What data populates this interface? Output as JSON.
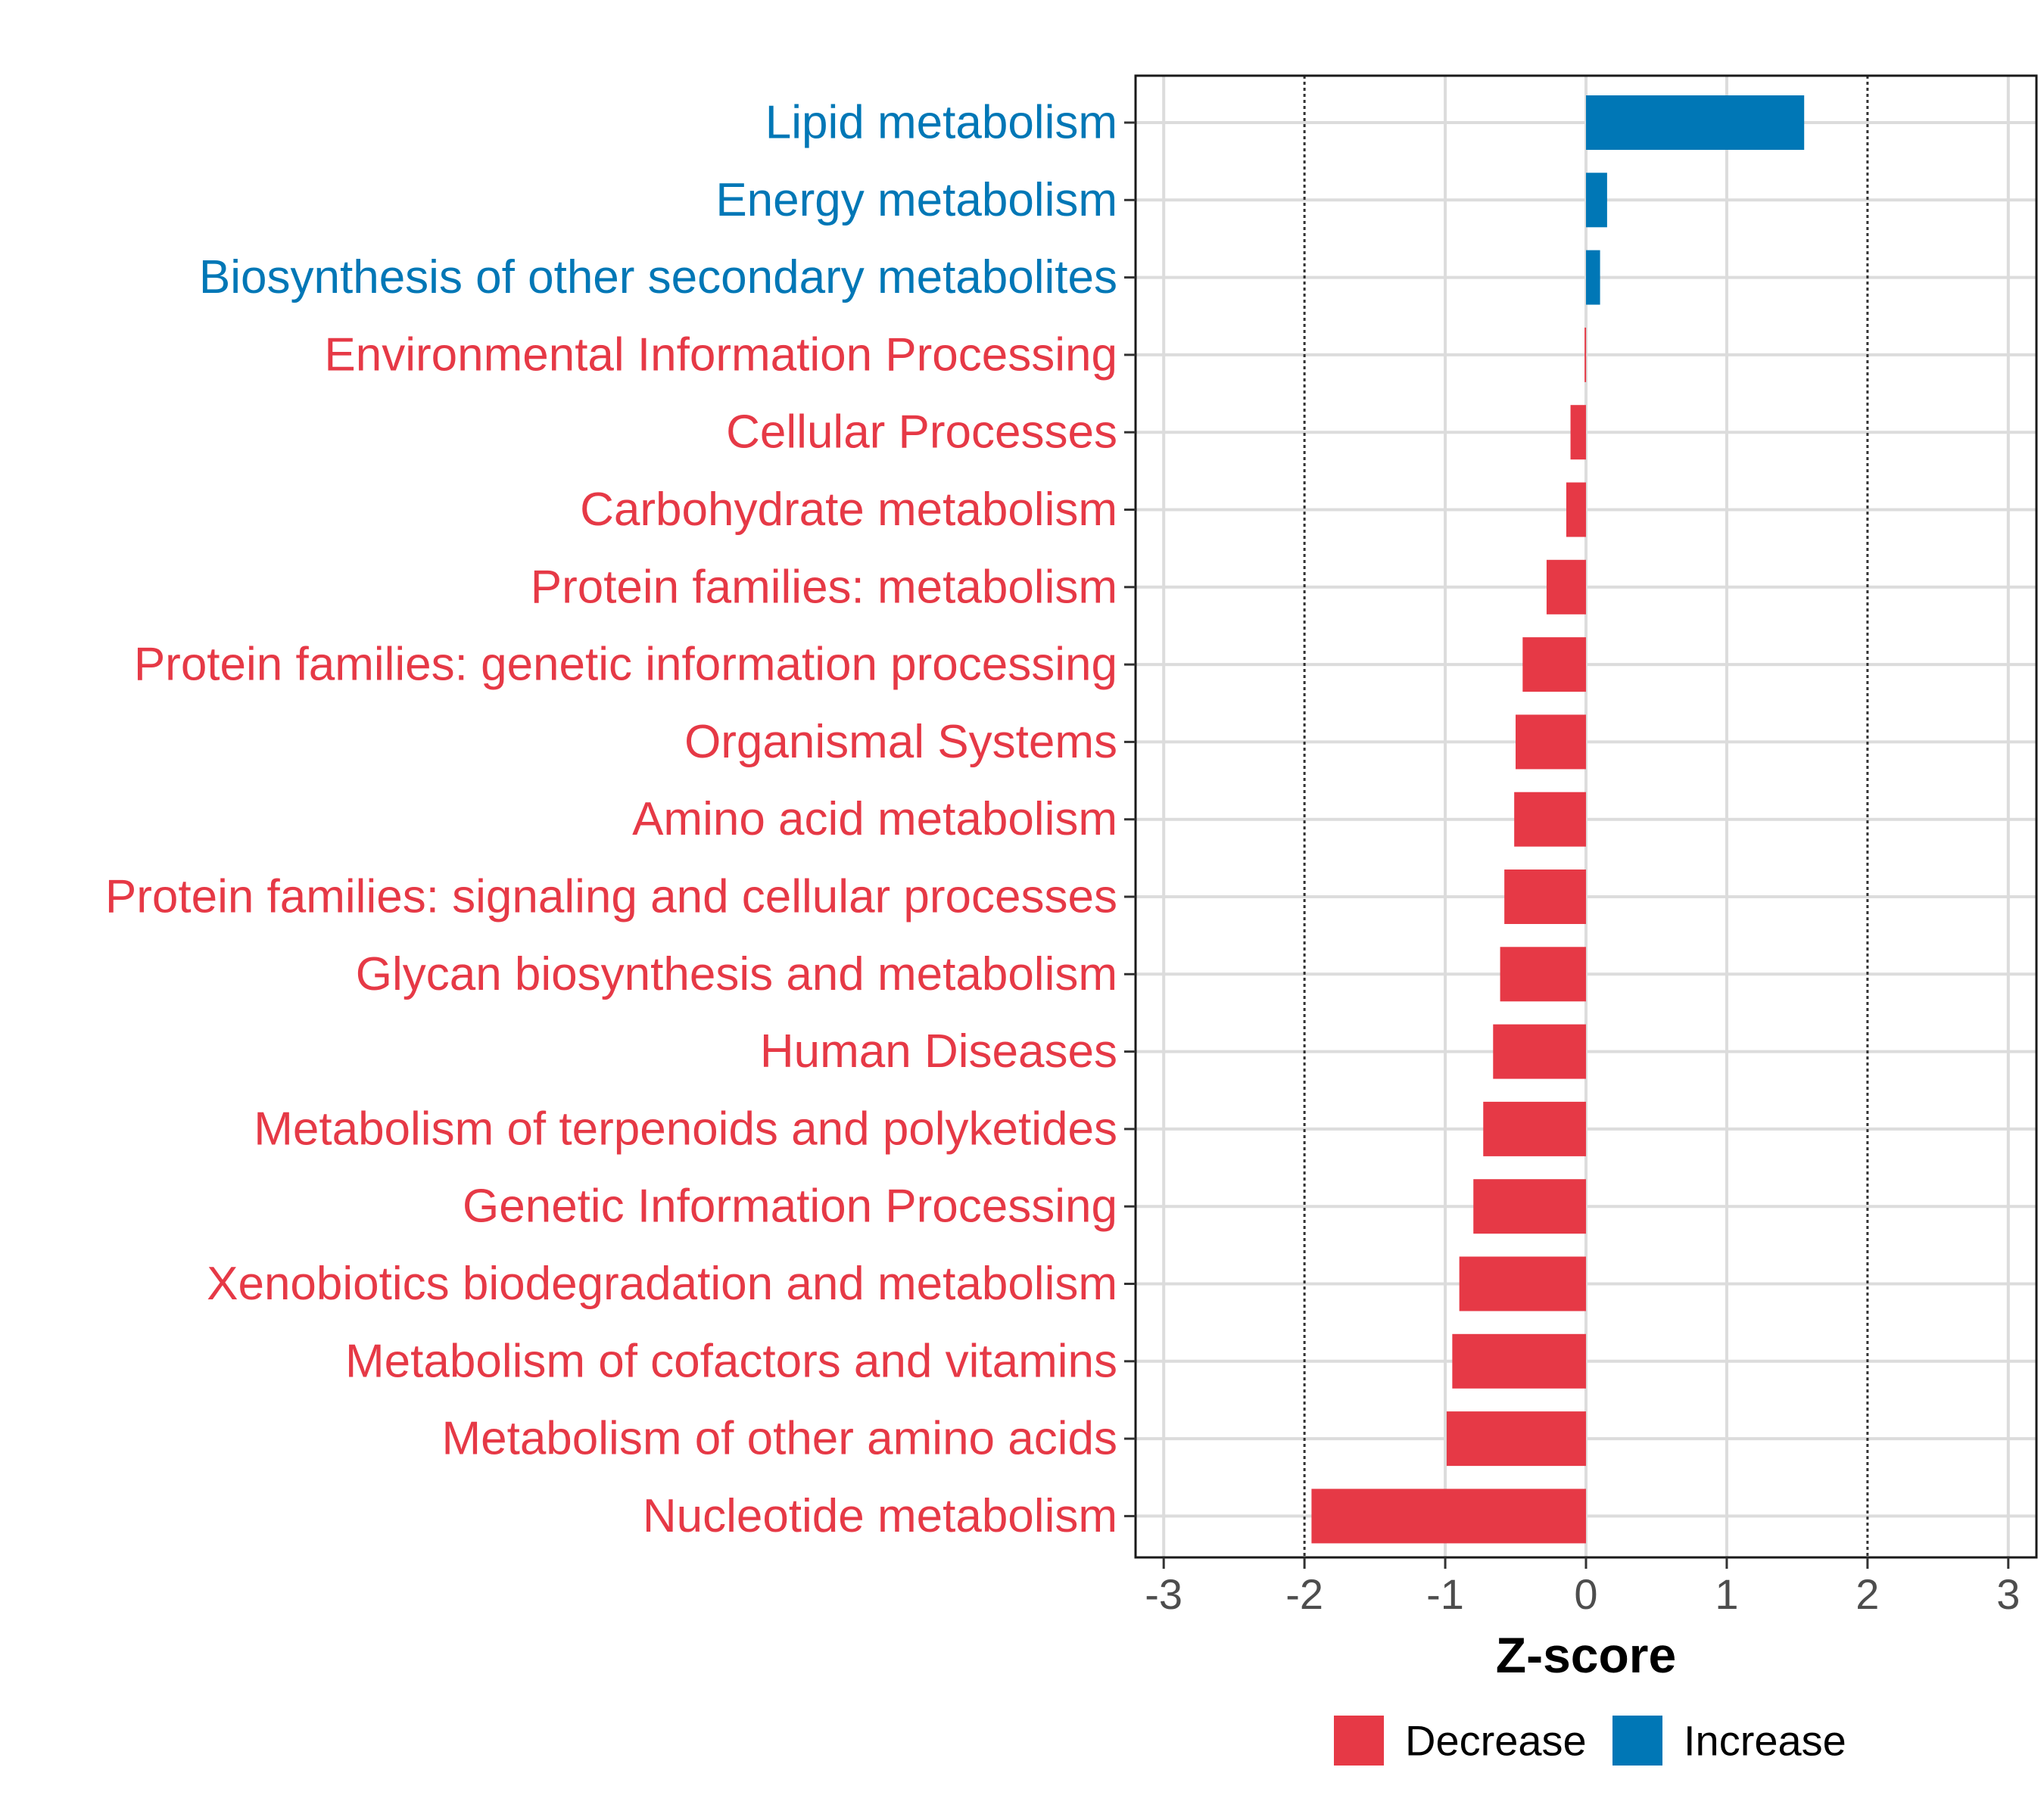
{
  "chart_data": {
    "type": "bar",
    "orientation": "horizontal",
    "title": "",
    "xlabel": "Z-score",
    "ylabel": "",
    "xlim": [
      -3.2,
      3.2
    ],
    "xticks": [
      -3,
      -2,
      -1,
      0,
      1,
      2,
      3
    ],
    "xtick_labels": [
      "-3",
      "-2",
      "-1",
      "0",
      "1",
      "2",
      "3"
    ],
    "reference_lines": [
      -2,
      2
    ],
    "grid": true,
    "legend_position": "bottom",
    "colors": {
      "Decrease": "#e63946",
      "Increase": "#0077b6"
    },
    "legend": [
      {
        "label": "Decrease",
        "color": "#e63946"
      },
      {
        "label": "Increase",
        "color": "#0077b6"
      }
    ],
    "categories": [
      "Lipid metabolism",
      "Energy metabolism",
      "Biosynthesis of other secondary metabolites",
      "Environmental Information Processing",
      "Cellular Processes",
      "Carbohydrate metabolism",
      "Protein families: metabolism",
      "Protein families: genetic information processing",
      "Organismal Systems",
      "Amino acid metabolism",
      "Protein families: signaling and cellular processes",
      "Glycan biosynthesis and metabolism",
      "Human Diseases",
      "Metabolism of terpenoids and polyketides",
      "Genetic Information Processing",
      "Xenobiotics biodegradation and metabolism",
      "Metabolism of cofactors and vitamins",
      "Metabolism of other amino acids",
      "Nucleotide metabolism"
    ],
    "values": [
      1.55,
      0.15,
      0.1,
      -0.01,
      -0.11,
      -0.14,
      -0.28,
      -0.45,
      -0.5,
      -0.51,
      -0.58,
      -0.61,
      -0.66,
      -0.73,
      -0.8,
      -0.9,
      -0.95,
      -0.99,
      -1.95
    ],
    "groups": [
      "Increase",
      "Increase",
      "Increase",
      "Decrease",
      "Decrease",
      "Decrease",
      "Decrease",
      "Decrease",
      "Decrease",
      "Decrease",
      "Decrease",
      "Decrease",
      "Decrease",
      "Decrease",
      "Decrease",
      "Decrease",
      "Decrease",
      "Decrease",
      "Decrease"
    ]
  }
}
